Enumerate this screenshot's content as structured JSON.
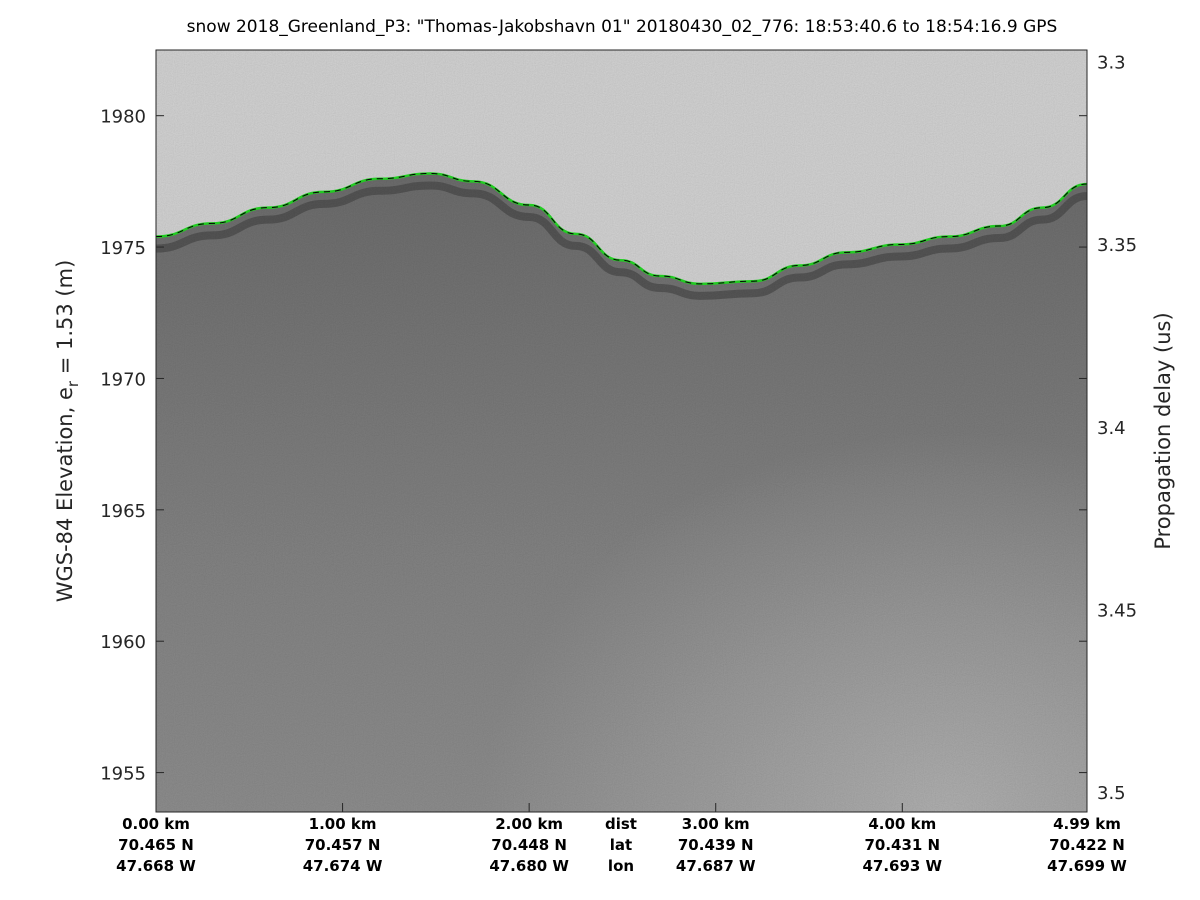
{
  "chart_data": {
    "type": "line",
    "title": "snow 2018_Greenland_P3: \"Thomas-Jakobshavn 01\"  20180430_02_776: 18:53:40.6 to 18:54:16.9 GPS",
    "ylabel": "WGS-84 Elevation, e_r = 1.53 (m)",
    "ylabel_main": "WGS-84 Elevation, e",
    "ylabel_sub": "r",
    "ylabel_tail": " = 1.53 (m)",
    "y2label": "Propagation delay (us)",
    "ylim": [
      1953.5,
      1982.5
    ],
    "y2lim": [
      3.2968,
      3.5055
    ],
    "xlim": [
      0,
      4.99
    ],
    "yticks": [
      1955,
      1960,
      1965,
      1970,
      1975,
      1980
    ],
    "y2ticks": [
      "3.3",
      "3.35",
      "3.4",
      "3.45",
      "3.5"
    ],
    "y2tick_values": [
      3.3,
      3.35,
      3.4,
      3.45,
      3.5
    ],
    "x_rows": {
      "row_labels": [
        "dist",
        "lat",
        "lon"
      ],
      "positions_km": [
        0,
        1,
        2,
        3,
        4,
        4.99
      ],
      "dist": [
        "0.00 km",
        "1.00 km",
        "2.00 km",
        "3.00 km",
        "4.00 km",
        "4.99 km"
      ],
      "lat": [
        "70.465 N",
        "70.457 N",
        "70.448 N",
        "70.439 N",
        "70.431 N",
        "70.422 N"
      ],
      "lon": [
        "47.668 W",
        "47.674 W",
        "47.680 W",
        "47.687 W",
        "47.693 W",
        "47.699 W"
      ]
    },
    "series": [
      {
        "color": "#22cc22",
        "x": [
          0,
          0.3,
          0.6,
          0.9,
          1.2,
          1.47,
          1.7,
          2.0,
          2.25,
          2.49,
          2.7,
          2.92,
          3.2,
          3.45,
          3.7,
          3.99,
          4.25,
          4.52,
          4.75,
          4.99
        ],
        "y": [
          1975.4,
          1975.9,
          1976.5,
          1977.1,
          1977.6,
          1977.8,
          1977.5,
          1976.6,
          1975.5,
          1974.5,
          1973.9,
          1973.6,
          1973.7,
          1974.3,
          1974.8,
          1975.1,
          1975.4,
          1975.8,
          1976.5,
          1977.4
        ]
      }
    ],
    "image": "radar echogram, grayscale"
  }
}
